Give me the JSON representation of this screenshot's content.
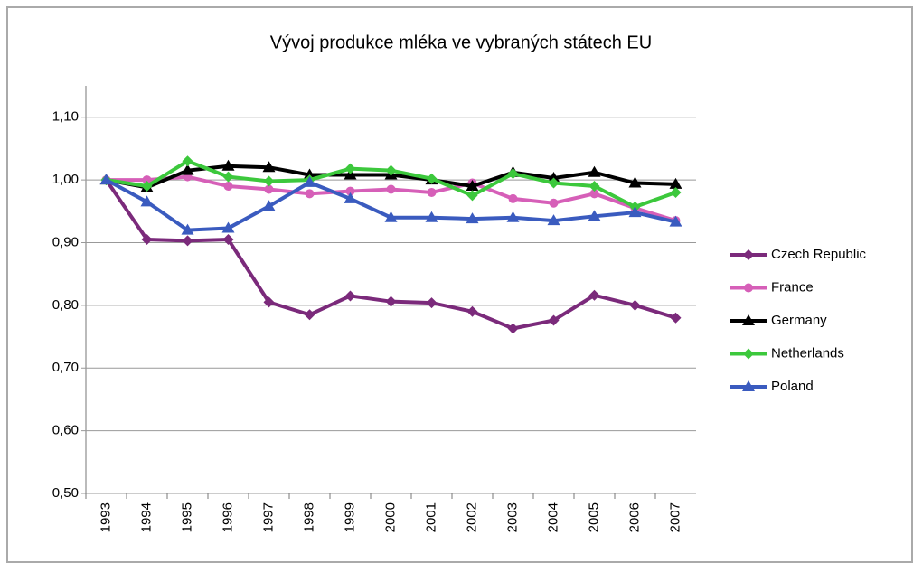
{
  "chart_data": {
    "type": "line",
    "title": "Vývoj produkce mléka ve vybraných státech EU",
    "categories": [
      "1993",
      "1994",
      "1995",
      "1996",
      "1997",
      "1998",
      "1999",
      "2000",
      "2001",
      "2002",
      "2003",
      "2004",
      "2005",
      "2006",
      "2007"
    ],
    "series": [
      {
        "name": "Czech Republic",
        "color": "#7b2a7b",
        "marker": "diamond",
        "values": [
          1.0,
          0.905,
          0.903,
          0.905,
          0.805,
          0.785,
          0.815,
          0.806,
          0.804,
          0.79,
          0.763,
          0.776,
          0.816,
          0.8,
          0.78
        ]
      },
      {
        "name": "France",
        "color": "#d65fb8",
        "marker": "circle",
        "values": [
          1.0,
          1.0,
          1.005,
          0.99,
          0.985,
          0.978,
          0.982,
          0.985,
          0.98,
          0.995,
          0.97,
          0.963,
          0.978,
          0.955,
          0.935
        ]
      },
      {
        "name": "Germany",
        "color": "#000000",
        "marker": "triangle",
        "values": [
          1.0,
          0.988,
          1.015,
          1.022,
          1.02,
          1.008,
          1.008,
          1.008,
          1.0,
          0.99,
          1.012,
          1.003,
          1.012,
          0.995,
          0.993
        ]
      },
      {
        "name": "Netherlands",
        "color": "#3cc83c",
        "marker": "diamond",
        "values": [
          1.0,
          0.99,
          1.03,
          1.005,
          0.998,
          1.0,
          1.018,
          1.015,
          1.002,
          0.975,
          1.01,
          0.995,
          0.99,
          0.957,
          0.98
        ]
      },
      {
        "name": "Poland",
        "color": "#3a5bbf",
        "marker": "triangle",
        "values": [
          1.0,
          0.965,
          0.92,
          0.923,
          0.958,
          0.996,
          0.97,
          0.94,
          0.94,
          0.938,
          0.94,
          0.935,
          0.942,
          0.948,
          0.933
        ]
      }
    ],
    "ylim": [
      0.5,
      1.15
    ],
    "yticks": [
      {
        "value": 0.5,
        "label": "0,50"
      },
      {
        "value": 0.6,
        "label": "0,60"
      },
      {
        "value": 0.7,
        "label": "0,70"
      },
      {
        "value": 0.8,
        "label": "0,80"
      },
      {
        "value": 0.9,
        "label": "0,90"
      },
      {
        "value": 1.0,
        "label": "1,00"
      },
      {
        "value": 1.1,
        "label": "1,10"
      }
    ],
    "grid": true,
    "legend": "right"
  }
}
